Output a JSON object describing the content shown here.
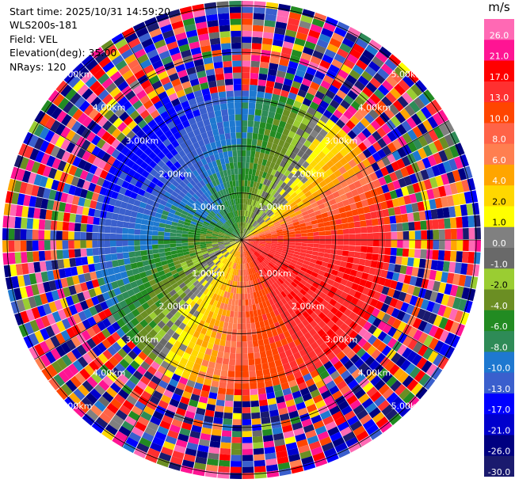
{
  "info": {
    "start_time": "Start time: 2025/10/31 14:59:20",
    "device": "WLS200s-181",
    "field": "Field: VEL",
    "elevation": "Elevation(deg): 35.00",
    "nrays": "NRays: 120"
  },
  "chart_data": {
    "type": "heatmap",
    "projection": "polar-ppi",
    "field": "VEL",
    "units": "m/s",
    "nrays": 120,
    "elevation_deg": 35.0,
    "range_rings_km": [
      1,
      2,
      3,
      4,
      5
    ],
    "range_ring_labels": [
      "1.00km",
      "2.00km",
      "3.00km",
      "4.00km",
      "5.00km"
    ],
    "max_range_km": 5.1,
    "colorbar": {
      "title": "m/s",
      "levels": [
        -30.0,
        -26.0,
        -21.0,
        -17.0,
        -13.0,
        -10.0,
        -8.0,
        -6.0,
        -4.0,
        -2.0,
        -1.0,
        0.0,
        1.0,
        2.0,
        4.0,
        6.0,
        8.0,
        10.0,
        13.0,
        17.0,
        21.0,
        26.0
      ],
      "tick_labels": [
        "-30.0",
        "-26.0",
        "-21.0",
        "-17.0",
        "-13.0",
        "-10.0",
        "-8.0",
        "-6.0",
        "-4.0",
        "-2.0",
        "-1.0",
        "0.0",
        "1.0",
        "2.0",
        "4.0",
        "6.0",
        "8.0",
        "10.0",
        "13.0",
        "17.0",
        "21.0",
        "26.0"
      ],
      "colors": [
        "#1a1a6e",
        "#000080",
        "#0000cd",
        "#0000ff",
        "#3a5fcd",
        "#1e78d0",
        "#2e8b57",
        "#228b22",
        "#6b8e23",
        "#9acd32",
        "#696969",
        "#808080",
        "#ffff00",
        "#ffd700",
        "#ffa500",
        "#ff7f50",
        "#ff6347",
        "#ff4500",
        "#ff3030",
        "#ff0000",
        "#ff1493",
        "#ff69b4"
      ]
    },
    "grid": true,
    "sector_mean_velocity_ms": [
      {
        "azimuth_deg": 0,
        "inner_ms": -2.0,
        "outer_ms": -10.0
      },
      {
        "azimuth_deg": 45,
        "inner_ms": -1.0,
        "outer_ms": 4.0
      },
      {
        "azimuth_deg": 90,
        "inner_ms": 13.0,
        "outer_ms": 17.0
      },
      {
        "azimuth_deg": 135,
        "inner_ms": 17.0,
        "outer_ms": 17.0
      },
      {
        "azimuth_deg": 180,
        "inner_ms": 6.0,
        "outer_ms": 10.0
      },
      {
        "azimuth_deg": 225,
        "inner_ms": 2.0,
        "outer_ms": -4.0
      },
      {
        "azimuth_deg": 270,
        "inner_ms": -1.0,
        "outer_ms": -13.0
      },
      {
        "azimuth_deg": 315,
        "inner_ms": -6.0,
        "outer_ms": -17.0
      }
    ]
  }
}
